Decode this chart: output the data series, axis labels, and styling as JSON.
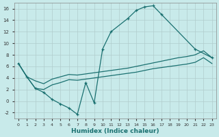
{
  "background_color": "#c8eaea",
  "line_color": "#1a7070",
  "xlabel": "Humidex (Indice chaleur)",
  "x_main": [
    0,
    1,
    2,
    3,
    4,
    5,
    6,
    7,
    8,
    9,
    10,
    11,
    13,
    14,
    15,
    16,
    17,
    21,
    23
  ],
  "y_main": [
    6.5,
    4.2,
    2.2,
    1.5,
    0.3,
    -0.5,
    -1.2,
    -2.3,
    3.2,
    -0.3,
    9.0,
    12.0,
    14.3,
    15.7,
    16.3,
    16.5,
    15.0,
    9.0,
    7.5
  ],
  "x_upper": [
    0,
    1,
    2,
    3,
    4,
    5,
    6,
    7,
    8,
    9,
    10,
    11,
    12,
    13,
    14,
    15,
    16,
    17,
    18,
    19,
    20,
    21,
    22,
    23
  ],
  "y_upper": [
    6.5,
    4.2,
    3.5,
    3.0,
    3.8,
    4.2,
    4.6,
    4.5,
    4.7,
    4.9,
    5.1,
    5.3,
    5.5,
    5.7,
    6.0,
    6.3,
    6.6,
    6.9,
    7.2,
    7.5,
    7.7,
    8.0,
    8.7,
    7.5
  ],
  "y_lower": [
    6.5,
    4.2,
    2.2,
    2.0,
    2.8,
    3.2,
    3.7,
    3.6,
    3.8,
    4.0,
    4.2,
    4.4,
    4.6,
    4.8,
    5.0,
    5.3,
    5.6,
    5.8,
    6.0,
    6.2,
    6.4,
    6.7,
    7.5,
    6.5
  ],
  "ylim": [
    -3,
    17
  ],
  "xlim": [
    -0.5,
    23.5
  ],
  "yticks": [
    -2,
    0,
    2,
    4,
    6,
    8,
    10,
    12,
    14,
    16
  ],
  "xticks": [
    0,
    1,
    2,
    3,
    4,
    5,
    6,
    7,
    8,
    9,
    10,
    11,
    12,
    13,
    14,
    15,
    16,
    17,
    18,
    19,
    20,
    21,
    22,
    23
  ]
}
